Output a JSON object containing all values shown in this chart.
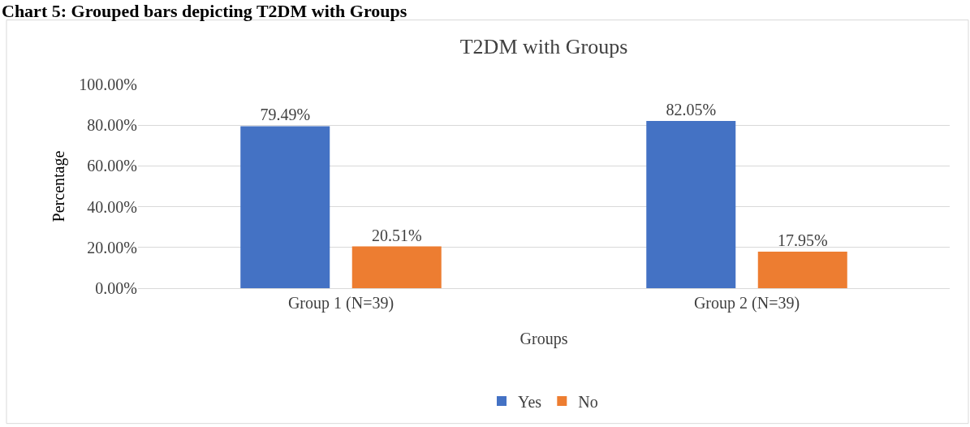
{
  "chart_data": {
    "type": "bar",
    "title": "T2DM with Groups",
    "xlabel": "Groups",
    "ylabel": "Percentage",
    "annotations": [
      "Chart 5: Grouped bars depicting T2DM with Groups"
    ],
    "categories": [
      "Group 1 (N=39)",
      "Group 2 (N=39)"
    ],
    "series": [
      {
        "name": "Yes",
        "color": "#4472c4",
        "values": [
          79.49,
          82.05
        ],
        "value_labels": [
          "79.49%",
          "82.05%"
        ]
      },
      {
        "name": "No",
        "color": "#ed7d31",
        "values": [
          20.51,
          17.95
        ],
        "value_labels": [
          "20.51%",
          "17.95%"
        ]
      }
    ],
    "ylim": [
      0,
      100
    ],
    "yticks": [
      {
        "value": 0,
        "label": "0.00%"
      },
      {
        "value": 20,
        "label": "20.00%"
      },
      {
        "value": 40,
        "label": "40.00%"
      },
      {
        "value": 60,
        "label": "60.00%"
      },
      {
        "value": 80,
        "label": "80.00%"
      },
      {
        "value": 100,
        "label": "100.00%"
      }
    ],
    "grid": "y",
    "legend": "bottom"
  }
}
